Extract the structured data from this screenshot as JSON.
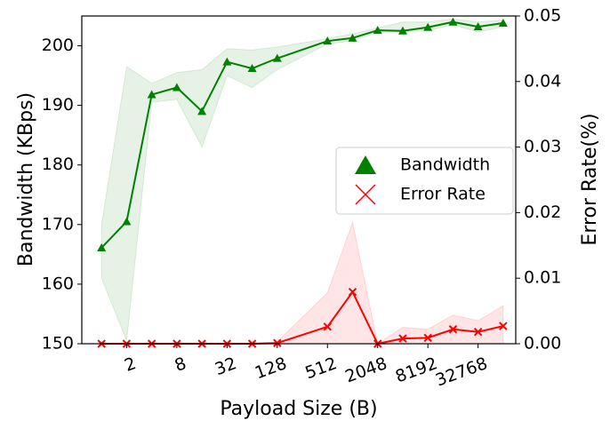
{
  "chart_data": {
    "type": "line",
    "xlabel": "Payload Size (B)",
    "ylabel": "Bandwidth (KBps)",
    "y2label": "Error Rate(%)",
    "x": [
      1,
      2,
      4,
      8,
      16,
      32,
      64,
      128,
      512,
      1024,
      2048,
      4096,
      8192,
      16384,
      32768,
      65536
    ],
    "xscale": "log2",
    "xlim": [
      0.58,
      92682
    ],
    "xticks": [
      2,
      8,
      32,
      128,
      512,
      2048,
      8192,
      32768
    ],
    "ylim": [
      150,
      205
    ],
    "yticks": [
      150,
      160,
      170,
      180,
      190,
      200
    ],
    "y2lim": [
      0,
      0.05
    ],
    "y2ticks": [
      {
        "value": 0,
        "label": "0.00"
      },
      {
        "value": 0.01,
        "label": "0.01"
      },
      {
        "value": 0.02,
        "label": "0.02"
      },
      {
        "value": 0.03,
        "label": "0.03"
      },
      {
        "value": 0.04,
        "label": "0.04"
      },
      {
        "value": 0.05,
        "label": "0.05"
      }
    ],
    "legend": "center right",
    "series": [
      {
        "name": "Bandwidth",
        "color": "#008000",
        "marker": "triangle",
        "axis": "y",
        "values": [
          166.1,
          170.5,
          191.8,
          193.0,
          189.0,
          197.3,
          196.2,
          197.9,
          200.8,
          201.3,
          202.6,
          202.5,
          203.1,
          204.0,
          203.2,
          203.8
        ],
        "band_upper": [
          170,
          196.5,
          193.7,
          195.5,
          196,
          199.5,
          199.3,
          199.8,
          201.2,
          202,
          203,
          204,
          204,
          204.5,
          204,
          204.3
        ],
        "band_lower": [
          161,
          150.5,
          190.5,
          191,
          183,
          195,
          193,
          196,
          200.3,
          200.8,
          202.3,
          202.3,
          202.6,
          203.5,
          202.3,
          203.2
        ]
      },
      {
        "name": "Error Rate",
        "color": "#ff0000",
        "marker": "x",
        "axis": "y2",
        "values": [
          0,
          0,
          0,
          0,
          0,
          0,
          0,
          0.0001,
          0.0026,
          0.0079,
          0,
          0.0008,
          0.0009,
          0.0022,
          0.0018,
          0.0027
        ],
        "band_upper": [
          0,
          0,
          0,
          0,
          0,
          0,
          0,
          0.0003,
          0.0078,
          0.0185,
          0,
          0.0025,
          0.0022,
          0.0044,
          0.0035,
          0.0058
        ],
        "band_lower": [
          0,
          0,
          0,
          0,
          0,
          0,
          0,
          0,
          0,
          0,
          0,
          0,
          0,
          0,
          0,
          0
        ]
      }
    ]
  }
}
